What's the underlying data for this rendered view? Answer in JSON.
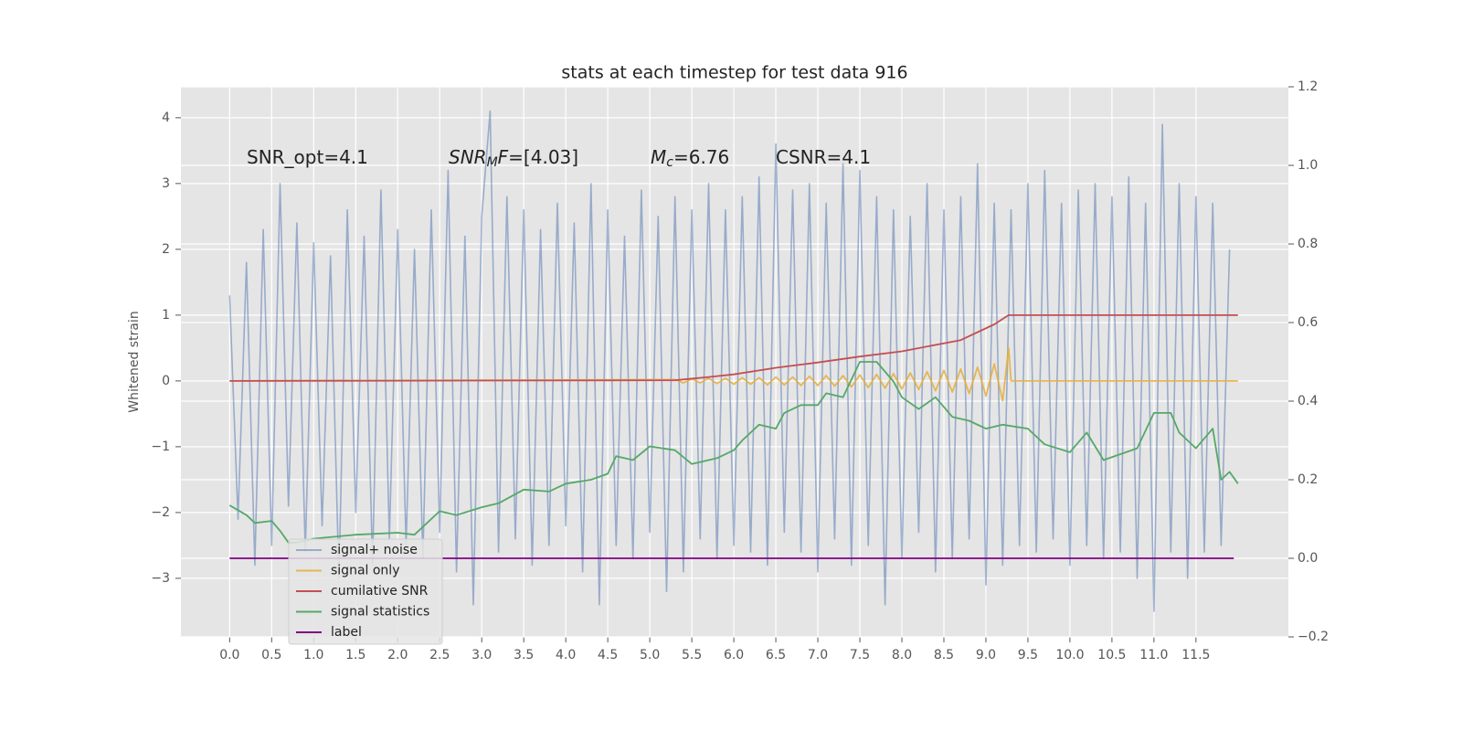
{
  "chart_data": {
    "type": "line",
    "title": "stats at each timestep for test data 916",
    "y_label": "Whitened strain",
    "annotations": [
      [
        {
          "text": "SNR_opt=4.1"
        }
      ],
      [
        {
          "text": "SNR",
          "italic": true
        },
        {
          "text": "M",
          "italic": true,
          "sub": true
        },
        {
          "text": "F",
          "italic": true
        },
        {
          "text": "=[4.03]"
        }
      ],
      [
        {
          "text": "M",
          "italic": true
        },
        {
          "text": "c",
          "italic": true,
          "sub": true
        },
        {
          "text": "=6.76"
        }
      ],
      [
        {
          "text": "CSNR=4.1"
        }
      ]
    ],
    "xlim": [
      -0.58,
      12.6
    ],
    "ylim": [
      -3.89,
      4.47
    ],
    "y2lim": [
      -0.2,
      1.2
    ],
    "xticks": [
      {
        "value": 0,
        "label": "0.0"
      },
      0.5,
      {
        "value": 1,
        "label": "1.0"
      },
      1.5,
      {
        "value": 2,
        "label": "2.0"
      },
      2.5,
      {
        "value": 3,
        "label": "3.0"
      },
      3.5,
      {
        "value": 4,
        "label": "4.0"
      },
      4.5,
      {
        "value": 5,
        "label": "5.0"
      },
      5.5,
      {
        "value": 6,
        "label": "6.0"
      },
      6.5,
      {
        "value": 7,
        "label": "7.0"
      },
      7.5,
      {
        "value": 8,
        "label": "8.0"
      },
      8.5,
      {
        "value": 9,
        "label": "9.0"
      },
      9.5,
      {
        "value": 10,
        "label": "10.0"
      },
      10.5,
      {
        "value": 11,
        "label": "11.0"
      },
      11.5
    ],
    "yticks": [
      {
        "value": -3,
        "label": "−3"
      },
      {
        "value": -2,
        "label": "−2"
      },
      {
        "value": -1,
        "label": "−1"
      },
      0,
      1,
      2,
      3,
      4
    ],
    "y2ticks": [
      {
        "value": -0.2,
        "label": "−0.2"
      },
      {
        "value": 0,
        "label": "0.0"
      },
      0.2,
      0.4,
      0.6,
      0.8,
      {
        "value": 1,
        "label": "1.0"
      },
      1.2
    ],
    "grid": true,
    "legend": "lower left",
    "series": [
      {
        "name": "signal+ noise",
        "color": "#4c72b0",
        "opacity": 0.5,
        "x": [
          0.0,
          0.1,
          0.2,
          0.3,
          0.4,
          0.5,
          0.6,
          0.7,
          0.8,
          0.9,
          1.0,
          1.1,
          1.2,
          1.3,
          1.4,
          1.5,
          1.6,
          1.7,
          1.8,
          1.9,
          2.0,
          2.1,
          2.2,
          2.3,
          2.4,
          2.5,
          2.6,
          2.7,
          2.8,
          2.9,
          3.0,
          3.1,
          3.2,
          3.3,
          3.4,
          3.5,
          3.6,
          3.7,
          3.8,
          3.9,
          4.0,
          4.1,
          4.2,
          4.3,
          4.4,
          4.5,
          4.6,
          4.7,
          4.8,
          4.9,
          5.0,
          5.1,
          5.2,
          5.3,
          5.4,
          5.5,
          5.6,
          5.7,
          5.8,
          5.9,
          6.0,
          6.1,
          6.2,
          6.3,
          6.4,
          6.5,
          6.6,
          6.7,
          6.8,
          6.9,
          7.0,
          7.1,
          7.2,
          7.3,
          7.4,
          7.5,
          7.6,
          7.7,
          7.8,
          7.9,
          8.0,
          8.1,
          8.2,
          8.3,
          8.4,
          8.5,
          8.6,
          8.7,
          8.8,
          8.9,
          9.0,
          9.1,
          9.2,
          9.3,
          9.4,
          9.5,
          9.6,
          9.7,
          9.8,
          9.9,
          10.0,
          10.1,
          10.2,
          10.3,
          10.4,
          10.5,
          10.6,
          10.7,
          10.8,
          10.9,
          11.0,
          11.1,
          11.2,
          11.3,
          11.4,
          11.5,
          11.6,
          11.7,
          11.8,
          11.9
        ],
        "values": [
          1.3,
          -2.1,
          1.8,
          -2.8,
          2.3,
          -2.5,
          3.0,
          -1.9,
          2.4,
          -2.6,
          2.1,
          -2.2,
          1.9,
          -3.0,
          2.6,
          -2.0,
          2.2,
          -2.8,
          2.9,
          -2.4,
          2.3,
          -2.5,
          2.0,
          -2.7,
          2.6,
          -2.3,
          3.2,
          -2.9,
          2.2,
          -3.4,
          2.5,
          4.1,
          -2.6,
          2.8,
          -2.4,
          2.6,
          -2.8,
          2.3,
          -2.5,
          2.7,
          -2.2,
          2.4,
          -2.9,
          3.0,
          -3.4,
          2.6,
          -2.5,
          2.2,
          -2.7,
          2.9,
          -2.3,
          2.5,
          -3.2,
          2.8,
          -2.9,
          2.6,
          -2.4,
          3.0,
          -2.7,
          2.6,
          -2.5,
          2.8,
          -2.6,
          3.1,
          -2.8,
          3.6,
          -2.3,
          2.9,
          -2.6,
          3.0,
          -2.9,
          2.7,
          -2.4,
          3.3,
          -2.8,
          3.2,
          -2.5,
          2.8,
          -3.4,
          2.6,
          -2.7,
          2.5,
          -2.3,
          3.0,
          -2.9,
          2.6,
          -2.7,
          2.8,
          -2.4,
          3.3,
          -3.1,
          2.7,
          -2.8,
          2.6,
          -2.5,
          3.0,
          -2.6,
          3.2,
          -2.4,
          2.7,
          -2.8,
          2.9,
          -2.5,
          3.0,
          -2.7,
          2.8,
          -2.6,
          3.1,
          -3.0,
          2.7,
          -3.5,
          3.9,
          -2.6,
          3.0,
          -3.0,
          2.8,
          -2.6,
          2.7,
          -2.5,
          2.0
        ]
      },
      {
        "name": "signal only",
        "color": "#e5ae38",
        "opacity": 0.85,
        "x": [
          0.0,
          5.3,
          5.4,
          5.5,
          5.6,
          5.7,
          5.8,
          5.9,
          6.0,
          6.1,
          6.2,
          6.3,
          6.4,
          6.5,
          6.6,
          6.7,
          6.8,
          6.9,
          7.0,
          7.1,
          7.2,
          7.3,
          7.4,
          7.5,
          7.6,
          7.7,
          7.8,
          7.9,
          8.0,
          8.1,
          8.2,
          8.3,
          8.4,
          8.5,
          8.6,
          8.7,
          8.8,
          8.9,
          9.0,
          9.1,
          9.2,
          9.27,
          9.3,
          12.0
        ],
        "values": [
          0,
          0.02,
          -0.03,
          0.03,
          -0.03,
          0.04,
          -0.04,
          0.04,
          -0.05,
          0.05,
          -0.05,
          0.05,
          -0.06,
          0.06,
          -0.06,
          0.06,
          -0.07,
          0.07,
          -0.07,
          0.08,
          -0.08,
          0.08,
          -0.09,
          0.09,
          -0.1,
          0.1,
          -0.11,
          0.11,
          -0.12,
          0.12,
          -0.13,
          0.14,
          -0.15,
          0.16,
          -0.17,
          0.18,
          -0.19,
          0.21,
          -0.23,
          0.26,
          -0.3,
          0.5,
          0,
          0
        ]
      },
      {
        "name": "cumilative SNR",
        "color": "#c44e52",
        "opacity": 1,
        "x": [
          0.0,
          5.3,
          5.7,
          6.0,
          6.5,
          7.0,
          7.5,
          8.0,
          8.7,
          9.1,
          9.27,
          12.0
        ],
        "values": [
          0,
          0.01,
          0.06,
          0.1,
          0.2,
          0.28,
          0.37,
          0.45,
          0.62,
          0.86,
          1.0,
          1.0
        ]
      },
      {
        "name": "signal statistics",
        "color": "#55a868",
        "opacity": 1,
        "axis": "y2",
        "x": [
          0.0,
          0.2,
          0.3,
          0.5,
          0.6,
          0.7,
          0.8,
          1.0,
          1.5,
          2.0,
          2.2,
          2.5,
          2.7,
          3.0,
          3.2,
          3.5,
          3.8,
          4.0,
          4.3,
          4.5,
          4.6,
          4.8,
          5.0,
          5.3,
          5.5,
          5.8,
          6.0,
          6.1,
          6.3,
          6.5,
          6.6,
          6.8,
          7.0,
          7.1,
          7.3,
          7.5,
          7.7,
          7.9,
          8.0,
          8.2,
          8.4,
          8.6,
          8.8,
          9.0,
          9.2,
          9.5,
          9.7,
          10.0,
          10.2,
          10.4,
          10.8,
          11.0,
          11.2,
          11.3,
          11.5,
          11.7,
          11.8,
          11.9,
          12.0
        ],
        "values": [
          0.135,
          0.11,
          0.09,
          0.095,
          0.07,
          0.04,
          0.04,
          0.05,
          0.06,
          0.065,
          0.06,
          0.12,
          0.11,
          0.13,
          0.14,
          0.175,
          0.17,
          0.19,
          0.2,
          0.215,
          0.26,
          0.25,
          0.285,
          0.275,
          0.24,
          0.255,
          0.275,
          0.3,
          0.34,
          0.33,
          0.37,
          0.39,
          0.39,
          0.42,
          0.41,
          0.5,
          0.5,
          0.45,
          0.41,
          0.38,
          0.41,
          0.36,
          0.35,
          0.33,
          0.34,
          0.33,
          0.29,
          0.27,
          0.32,
          0.25,
          0.28,
          0.37,
          0.37,
          0.32,
          0.28,
          0.33,
          0.2,
          0.22,
          0.19
        ]
      },
      {
        "name": "label",
        "color": "#800080",
        "opacity": 1,
        "axis": "y2",
        "x": [
          0.0,
          11.95
        ],
        "values": [
          0,
          0
        ]
      }
    ]
  }
}
